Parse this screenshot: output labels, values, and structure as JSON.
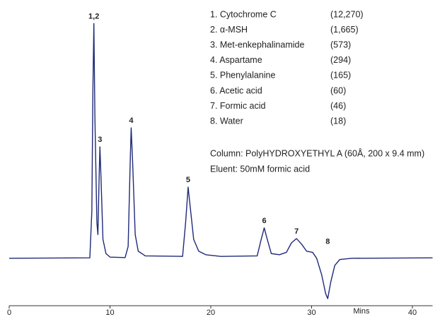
{
  "chart_data": {
    "type": "line",
    "color": "#1f2a78",
    "x": [
      0,
      8.0,
      8.2,
      8.3,
      8.4,
      8.5,
      8.7,
      8.8,
      8.9,
      9.0,
      9.1,
      9.3,
      9.6,
      10.0,
      11.5,
      11.8,
      12.0,
      12.1,
      12.25,
      12.5,
      12.8,
      13.5,
      17.2,
      17.5,
      17.75,
      18.0,
      18.3,
      18.8,
      19.5,
      21.0,
      24.6,
      25.0,
      25.3,
      25.6,
      26.0,
      26.8,
      27.5,
      28.0,
      28.5,
      29.0,
      29.5,
      30.1,
      30.5,
      31.0,
      31.4,
      31.6,
      31.9,
      32.3,
      32.8,
      34.0,
      42.0
    ],
    "values": [
      0,
      0.2,
      20,
      70,
      99,
      60,
      15,
      10,
      30,
      47,
      35,
      8,
      2,
      0.5,
      0.3,
      5,
      40,
      55,
      40,
      10,
      3,
      1,
      0.8,
      15,
      30,
      20,
      8,
      3,
      1.5,
      0.8,
      1,
      8,
      12.8,
      8,
      2,
      1.5,
      2.5,
      6.5,
      8.3,
      6,
      3,
      2.5,
      0,
      -7,
      -15,
      -17,
      -10,
      -3,
      -0.5,
      0,
      0.2
    ],
    "xlim": [
      0,
      42
    ],
    "ylim": [
      -20,
      100
    ],
    "xticks": [
      0,
      10,
      20,
      30,
      40
    ],
    "xlabel": "Mins",
    "annotations": [
      {
        "text": "1,2",
        "x": 8.4,
        "y": 99
      },
      {
        "text": "3",
        "x": 9.0,
        "y": 47
      },
      {
        "text": "4",
        "x": 12.1,
        "y": 55
      },
      {
        "text": "5",
        "x": 17.75,
        "y": 30
      },
      {
        "text": "6",
        "x": 25.3,
        "y": 12.8
      },
      {
        "text": "7",
        "x": 28.5,
        "y": 8.3
      },
      {
        "text": "8",
        "x": 31.6,
        "y": 4
      }
    ],
    "compounds": [
      {
        "label": "1. Cytochrome C",
        "mw": "(12,270)"
      },
      {
        "label": "2. α-MSH",
        "mw": "(1,665)"
      },
      {
        "label": "3. Met-enkephalinamide",
        "mw": "(573)"
      },
      {
        "label": "4. Aspartame",
        "mw": "(294)"
      },
      {
        "label": "5. Phenylalanine",
        "mw": "(165)"
      },
      {
        "label": "6. Acetic acid",
        "mw": "(60)"
      },
      {
        "label": "7. Formic acid",
        "mw": "(46)"
      },
      {
        "label": "8. Water",
        "mw": "(18)"
      }
    ],
    "notes": [
      "Column: PolyHYDROXYETHYL A (60Å, 200 x 9.4 mm)",
      "Eluent: 50mM formic acid"
    ]
  }
}
